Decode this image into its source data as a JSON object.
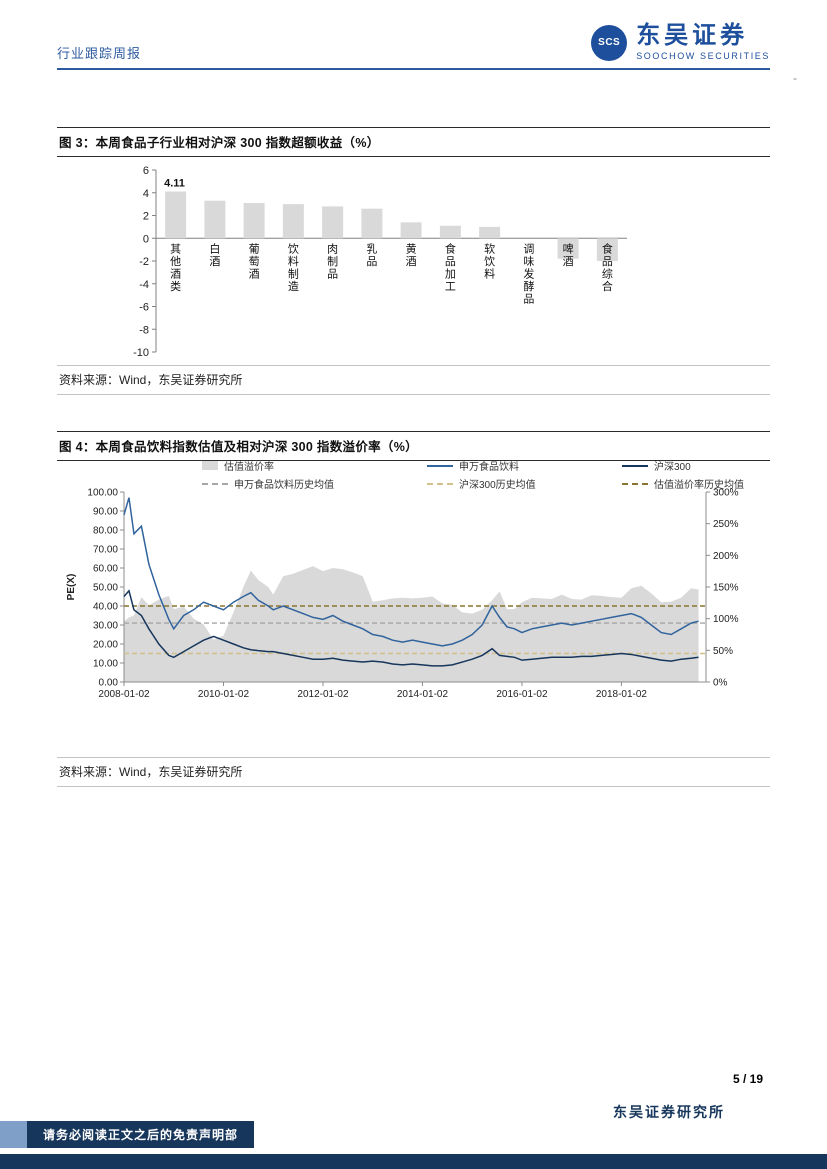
{
  "header": {
    "report_type": "行业跟踪周报",
    "brand_cn": "东吴证券",
    "brand_en": "SOOCHOW SECURITIES",
    "logo_monogram": "SCS",
    "dash": "-"
  },
  "figure3": {
    "title": "图 3：本周食品子行业相对沪深 300 指数超额收益（%）",
    "source": "资料来源：Wind，东吴证券研究所"
  },
  "figure4": {
    "title": "图 4：本周食品饮料指数估值及相对沪深 300 指数溢价率（%）",
    "source": "资料来源：Wind，东吴证券研究所"
  },
  "footer": {
    "page_number": "5 / 19",
    "institute": "东吴证券研究所",
    "disclaimer": "请务必阅读正文之后的免责声明部"
  },
  "colors": {
    "brand_blue": "#1d4f9c",
    "navy": "#17365c",
    "bar_gray": "#d9d9d9",
    "line_blue": "#31639c",
    "area_gray": "#d9d9d9",
    "dash_gray": "#a6a6a6",
    "dash_tan": "#d2c08c",
    "dash_gold": "#8a7430"
  },
  "chart_data": [
    {
      "type": "bar",
      "title": "本周食品子行业相对沪深300指数超额收益（%）",
      "categories": [
        "其他酒类",
        "白酒",
        "葡萄酒",
        "饮料制造",
        "肉制品",
        "乳品",
        "黄酒",
        "食品加工",
        "软饮料",
        "调味发酵品",
        "啤酒",
        "食品综合"
      ],
      "values": [
        4.11,
        3.3,
        3.1,
        3.0,
        2.8,
        2.6,
        1.4,
        1.1,
        1.0,
        0.0,
        -1.8,
        -2.0
      ],
      "bar_color": "#d9d9d9",
      "ylim": [
        -10,
        6
      ],
      "ytick_step": 2,
      "data_label": {
        "category": "其他酒类",
        "text": "4.11"
      }
    },
    {
      "type": "line",
      "title": "本周食品饮料指数估值及相对沪深300指数溢价率（%）",
      "x_years": [
        2008.0,
        2008.1,
        2008.2,
        2008.35,
        2008.5,
        2008.7,
        2008.9,
        2009.0,
        2009.2,
        2009.4,
        2009.6,
        2009.8,
        2010.0,
        2010.2,
        2010.4,
        2010.55,
        2010.7,
        2010.9,
        2011.0,
        2011.2,
        2011.4,
        2011.6,
        2011.8,
        2012.0,
        2012.2,
        2012.4,
        2012.6,
        2012.8,
        2013.0,
        2013.2,
        2013.4,
        2013.6,
        2013.8,
        2014.0,
        2014.2,
        2014.4,
        2014.6,
        2014.8,
        2015.0,
        2015.2,
        2015.4,
        2015.55,
        2015.7,
        2015.85,
        2016.0,
        2016.2,
        2016.4,
        2016.6,
        2016.8,
        2017.0,
        2017.2,
        2017.4,
        2017.6,
        2017.8,
        2018.0,
        2018.2,
        2018.4,
        2018.6,
        2018.8,
        2019.0,
        2019.2,
        2019.4,
        2019.55
      ],
      "xtick_labels": [
        "2008-01-02",
        "2010-01-02",
        "2012-01-02",
        "2014-01-02",
        "2016-01-02",
        "2018-01-02"
      ],
      "xtick_years": [
        2008,
        2010,
        2012,
        2014,
        2016,
        2018
      ],
      "left_axis": {
        "label": "PE(X)",
        "min": 0,
        "max": 100,
        "step": 10
      },
      "right_axis": {
        "min": 0,
        "max": 300,
        "step": 50,
        "suffix": "%"
      },
      "series": [
        {
          "name": "估值溢价率",
          "type": "area",
          "axis": "right",
          "color": "#d9d9d9",
          "values": [
            96,
            102,
            105,
            134,
            121,
            130,
            136,
            115,
            119,
            100,
            91,
            67,
            73,
            110,
            150,
            176,
            161,
            150,
            138,
            167,
            171,
            177,
            183,
            175,
            180,
            178,
            173,
            167,
            127,
            129,
            132,
            133,
            132,
            133,
            135,
            124,
            122,
            110,
            108,
            114,
            129,
            143,
            115,
            115,
            126,
            133,
            132,
            131,
            138,
            131,
            130,
            137,
            136,
            134,
            133,
            148,
            152,
            140,
            126,
            127,
            133,
            148,
            146
          ]
        },
        {
          "name": "申万食品饮料",
          "type": "line",
          "axis": "left",
          "color": "#31639c",
          "values": [
            88,
            97,
            78,
            82,
            62,
            46,
            33,
            28,
            35,
            38,
            42,
            40,
            38,
            42,
            45,
            47,
            43,
            40,
            38,
            40,
            38,
            36,
            34,
            33,
            35,
            32,
            30,
            28,
            25,
            24,
            22,
            21,
            22,
            21,
            20,
            19,
            20,
            22,
            25,
            30,
            40,
            34,
            29,
            28,
            26,
            28,
            29,
            30,
            31,
            30,
            31,
            32,
            33,
            34,
            35,
            36,
            34,
            30,
            26,
            25,
            28,
            31,
            32
          ]
        },
        {
          "name": "沪深300",
          "type": "line",
          "axis": "left",
          "color": "#17365c",
          "values": [
            45,
            48,
            38,
            35,
            28,
            20,
            14,
            13,
            16,
            19,
            22,
            24,
            22,
            20,
            18,
            17,
            16.5,
            16,
            16,
            15,
            14,
            13,
            12,
            12,
            12.5,
            11.5,
            11,
            10.5,
            11,
            10.5,
            9.5,
            9,
            9.5,
            9,
            8.5,
            8.5,
            9,
            10.5,
            12,
            14,
            17.5,
            14,
            13.5,
            13,
            11.5,
            12,
            12.5,
            13,
            13,
            13,
            13.5,
            13.5,
            14,
            14.5,
            15,
            14.5,
            13.5,
            12.5,
            11.5,
            11,
            12,
            12.5,
            13
          ]
        }
      ],
      "mean_lines": [
        {
          "name": "申万食品饮料历史均值",
          "axis": "left",
          "value": 31,
          "color": "#a6a6a6"
        },
        {
          "name": "沪深300历史均值",
          "axis": "left",
          "value": 15,
          "color": "#d2c08c"
        },
        {
          "name": "估值溢价率历史均值",
          "axis": "right",
          "value": 120,
          "color": "#8a7430"
        }
      ],
      "legend_rows": [
        [
          "估值溢价率",
          "申万食品饮料",
          "沪深300"
        ],
        [
          "申万食品饮料历史均值",
          "沪深300历史均值",
          "估值溢价率历史均值"
        ]
      ]
    }
  ]
}
